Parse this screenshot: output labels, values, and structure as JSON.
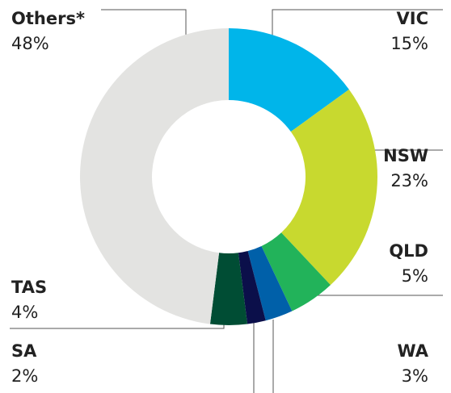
{
  "chart_data": {
    "type": "donut",
    "categories": [
      "VIC",
      "NSW",
      "QLD",
      "WA",
      "SA",
      "TAS",
      "Others*"
    ],
    "values": [
      15,
      23,
      5,
      3,
      2,
      4,
      48
    ],
    "value_labels": [
      "15%",
      "23%",
      "5%",
      "3%",
      "2%",
      "4%",
      "48%"
    ],
    "colors": [
      "#00b5ea",
      "#c8d92f",
      "#22b35a",
      "#0060a9",
      "#0b0f4a",
      "#004d34",
      "#e3e3e1"
    ]
  }
}
